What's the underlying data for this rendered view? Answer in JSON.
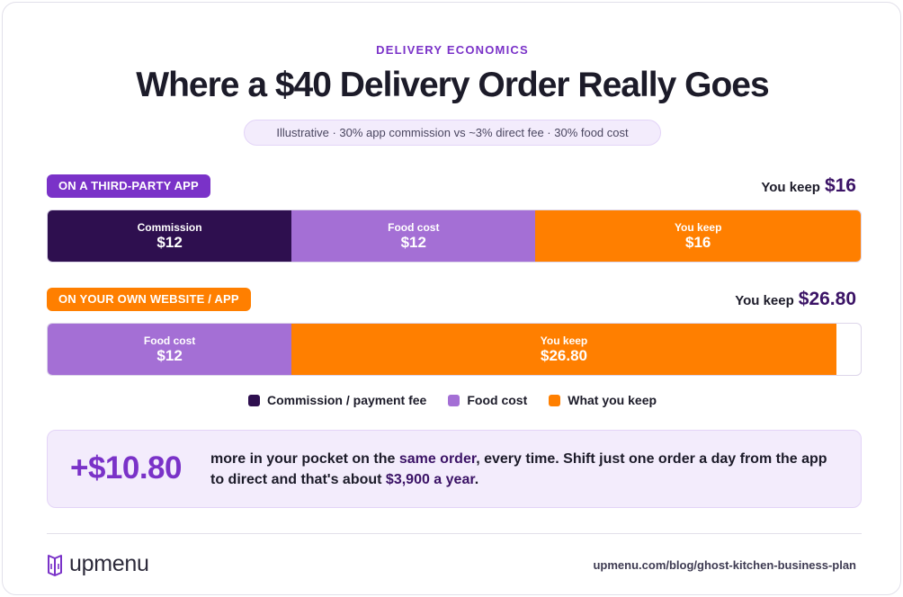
{
  "header": {
    "kicker": "DELIVERY ECONOMICS",
    "title": "Where a $40 Delivery Order Really Goes",
    "subtitle": "Illustrative · 30% app commission vs ~3% direct fee · 30% food cost"
  },
  "colors": {
    "commission": "#2e0f4f",
    "food_cost": "#a46fd5",
    "keep": "#ff7f00",
    "brand_purple": "#7a32c8"
  },
  "chart_data": {
    "type": "bar",
    "orientation": "horizontal-stacked",
    "total": 40,
    "bars": [
      {
        "tag": "ON A THIRD-PARTY APP",
        "keep_label": "You keep",
        "keep_amount": "$16",
        "segments": [
          {
            "key": "commission",
            "label": "Commission",
            "value": 12,
            "display": "$12"
          },
          {
            "key": "food_cost",
            "label": "Food cost",
            "value": 12,
            "display": "$12"
          },
          {
            "key": "keep",
            "label": "You keep",
            "value": 16,
            "display": "$16"
          }
        ]
      },
      {
        "tag": "ON YOUR OWN WEBSITE / APP",
        "keep_label": "You keep",
        "keep_amount": "$26.80",
        "segments": [
          {
            "key": "food_cost",
            "label": "Food cost",
            "value": 12,
            "display": "$12"
          },
          {
            "key": "keep",
            "label": "You keep",
            "value": 26.8,
            "display": "$26.80"
          }
        ]
      }
    ],
    "legend": [
      {
        "key": "commission",
        "label": "Commission / payment fee"
      },
      {
        "key": "food_cost",
        "label": "Food cost"
      },
      {
        "key": "keep",
        "label": "What you keep"
      }
    ]
  },
  "callout": {
    "number": "+$10.80",
    "text_1": "more in your pocket on the ",
    "hl_1": "same order",
    "text_2": ", every time. Shift just one order a day from the app to direct and that's about ",
    "hl_2": "$3,900 a year",
    "text_3": "."
  },
  "footer": {
    "logo_text": "upmenu",
    "logo_icon": "upmenu-logo-icon",
    "source": "upmenu.com/blog/ghost-kitchen-business-plan"
  }
}
